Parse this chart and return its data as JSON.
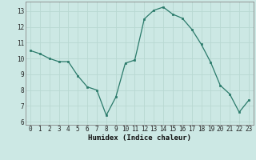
{
  "x": [
    0,
    1,
    2,
    3,
    4,
    5,
    6,
    7,
    8,
    9,
    10,
    11,
    12,
    13,
    14,
    15,
    16,
    17,
    18,
    19,
    20,
    21,
    22,
    23
  ],
  "y": [
    10.5,
    10.3,
    10.0,
    9.8,
    9.8,
    8.9,
    8.2,
    8.0,
    6.4,
    7.55,
    9.7,
    9.9,
    12.5,
    13.05,
    13.25,
    12.8,
    12.55,
    11.85,
    10.9,
    9.75,
    8.3,
    7.75,
    6.6,
    7.35
  ],
  "xlabel": "Humidex (Indice chaleur)",
  "xlim": [
    -0.5,
    23.5
  ],
  "ylim": [
    5.8,
    13.6
  ],
  "yticks": [
    6,
    7,
    8,
    9,
    10,
    11,
    12,
    13
  ],
  "xticks": [
    0,
    1,
    2,
    3,
    4,
    5,
    6,
    7,
    8,
    9,
    10,
    11,
    12,
    13,
    14,
    15,
    16,
    17,
    18,
    19,
    20,
    21,
    22,
    23
  ],
  "line_color": "#2a7a6a",
  "bg_color": "#cce8e4",
  "grid_color": "#b8d8d2"
}
